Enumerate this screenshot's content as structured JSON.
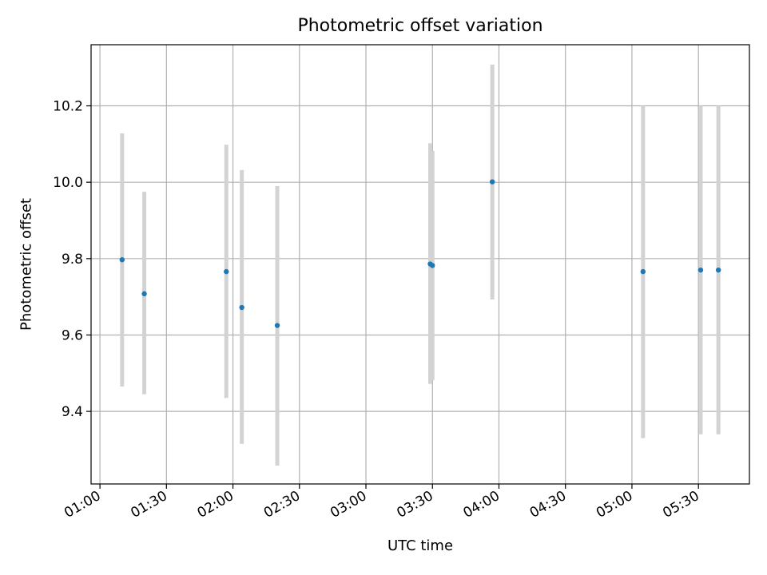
{
  "chart_data": {
    "type": "scatter",
    "title": "Photometric offset variation",
    "xlabel": "UTC time",
    "ylabel": "Photometric offset",
    "x_axis": {
      "kind": "time",
      "range": [
        "00:56",
        "05:53"
      ],
      "ticks": [
        "01:00",
        "01:30",
        "02:00",
        "02:30",
        "03:00",
        "03:30",
        "04:00",
        "04:30",
        "05:00",
        "05:30"
      ]
    },
    "y_axis": {
      "range": [
        9.21,
        10.36
      ],
      "ticks": [
        "9.4",
        "9.6",
        "9.8",
        "10.0",
        "10.2"
      ]
    },
    "grid": true,
    "colors": {
      "point": "#1f77b4",
      "errorbar": "#d3d3d3",
      "grid": "#b0b0b0"
    },
    "points": [
      {
        "time": "01:10",
        "y": 9.797,
        "err_low": 9.465,
        "err_high": 10.128
      },
      {
        "time": "01:20",
        "y": 9.708,
        "err_low": 9.445,
        "err_high": 9.975
      },
      {
        "time": "01:57",
        "y": 9.766,
        "err_low": 9.435,
        "err_high": 10.098
      },
      {
        "time": "02:04",
        "y": 9.672,
        "err_low": 9.315,
        "err_high": 10.032
      },
      {
        "time": "02:20",
        "y": 9.625,
        "err_low": 9.258,
        "err_high": 9.99
      },
      {
        "time": "03:29",
        "y": 9.786,
        "err_low": 9.472,
        "err_high": 10.102
      },
      {
        "time": "03:30",
        "y": 9.782,
        "err_low": 9.482,
        "err_high": 10.082
      },
      {
        "time": "03:57",
        "y": 10.001,
        "err_low": 9.693,
        "err_high": 10.308
      },
      {
        "time": "05:05",
        "y": 9.766,
        "err_low": 9.33,
        "err_high": 10.2
      },
      {
        "time": "05:31",
        "y": 9.77,
        "err_low": 9.34,
        "err_high": 10.2
      },
      {
        "time": "05:39",
        "y": 9.77,
        "err_low": 9.34,
        "err_high": 10.2
      }
    ]
  }
}
